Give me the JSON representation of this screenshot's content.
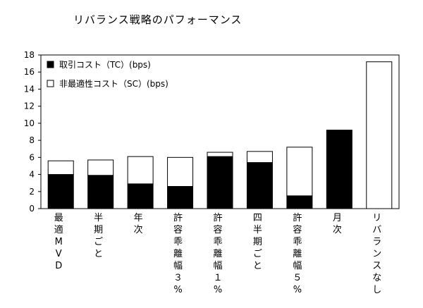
{
  "chart_data": {
    "type": "bar",
    "stacked": true,
    "title": "リバランス戦略のパフォーマンス",
    "xlabel": "",
    "ylabel": "",
    "ylim": [
      0,
      18
    ],
    "yticks": [
      "0",
      "2",
      "4",
      "6",
      "8",
      "10",
      "12",
      "14",
      "16",
      "18"
    ],
    "grid": false,
    "legend_position": "top-left",
    "categories": [
      "最適MVD",
      "半期ごと",
      "年次",
      "許容乖離幅３%",
      "許容乖離幅１%",
      "四半期ごと",
      "許容乖離幅５%",
      "月次",
      "リバランスなし"
    ],
    "series": [
      {
        "name": "取引コスト（TC）(bps)",
        "color": "#000000",
        "values": [
          4.0,
          3.9,
          2.9,
          2.6,
          6.1,
          5.4,
          1.5,
          9.2,
          0
        ]
      },
      {
        "name": "非最適性コスト（SC）(bps)",
        "color": "#ffffff",
        "values": [
          1.6,
          1.8,
          3.2,
          3.4,
          0.5,
          1.3,
          5.7,
          0,
          17.2
        ]
      }
    ]
  }
}
